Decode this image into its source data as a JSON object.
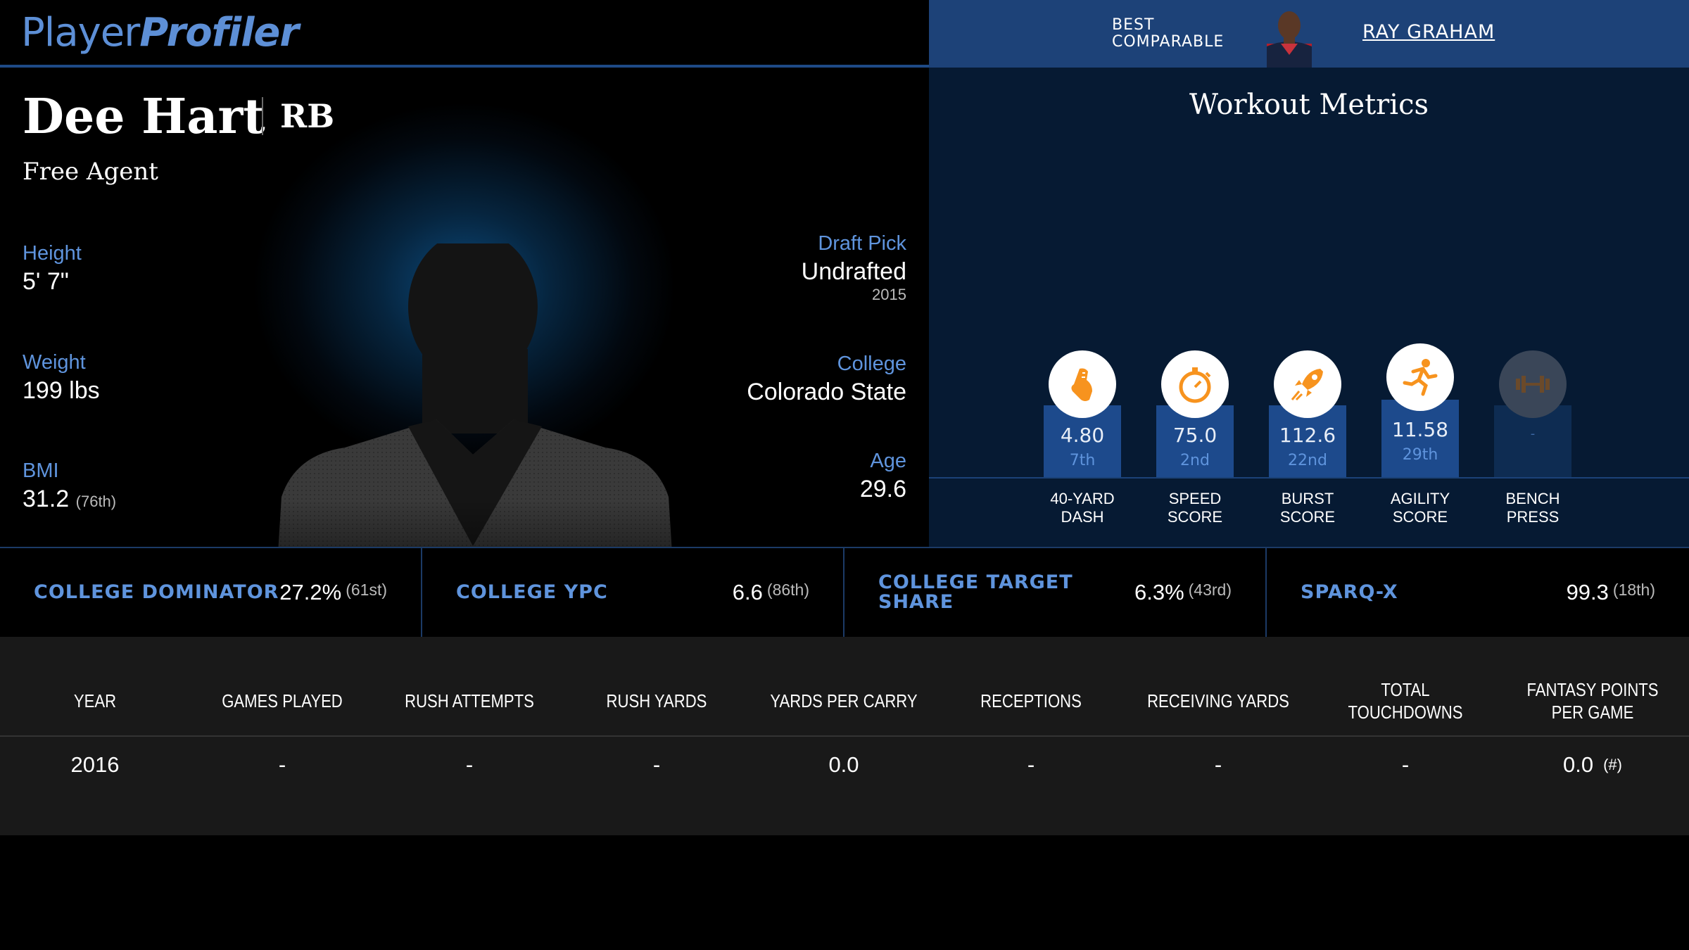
{
  "header": {
    "logo_part1": "Player",
    "logo_part2": "Profiler"
  },
  "comparable": {
    "label_line1": "BEST",
    "label_line2": "COMPARABLE",
    "name": "RAY GRAHAM"
  },
  "player": {
    "name": "Dee Hart",
    "position": "RB",
    "team": "Free Agent",
    "height_label": "Height",
    "height": "5' 7\"",
    "weight_label": "Weight",
    "weight": "199 lbs",
    "bmi_label": "BMI",
    "bmi": "31.2",
    "bmi_rank": "(76th)",
    "draft_label": "Draft Pick",
    "draft": "Undrafted",
    "draft_year": "2015",
    "college_label": "College",
    "college": "Colorado State",
    "age_label": "Age",
    "age": "29.6"
  },
  "workout": {
    "title": "Workout Metrics",
    "metrics": [
      {
        "value": "4.80",
        "rank": "7th",
        "label1": "40-YARD",
        "label2": "DASH",
        "icon": "shoe-icon",
        "level": 0.55
      },
      {
        "value": "75.0",
        "rank": "2nd",
        "label1": "SPEED",
        "label2": "SCORE",
        "icon": "stopwatch-icon",
        "level": 0.55
      },
      {
        "value": "112.6",
        "rank": "22nd",
        "label1": "BURST",
        "label2": "SCORE",
        "icon": "rocket-icon",
        "level": 0.55
      },
      {
        "value": "11.58",
        "rank": "29th",
        "label1": "AGILITY",
        "label2": "SCORE",
        "icon": "runner-icon",
        "level": 0.6
      },
      {
        "value": "-",
        "rank": "",
        "label1": "BENCH",
        "label2": "PRESS",
        "icon": "barbell-icon",
        "level": 0.55
      }
    ]
  },
  "college_metrics": [
    {
      "label": "COLLEGE DOMINATOR",
      "value": "27.2%",
      "rank": "(61st)"
    },
    {
      "label": "COLLEGE YPC",
      "value": "6.6",
      "rank": "(86th)"
    },
    {
      "label_line1": "COLLEGE TARGET",
      "label_line2": "SHARE",
      "value": "6.3%",
      "rank": "(43rd)"
    },
    {
      "label": "SPARQ-X",
      "value": "99.3",
      "rank": "(18th)"
    }
  ],
  "stats_table": {
    "headers": [
      "YEAR",
      "GAMES PLAYED",
      "RUSH ATTEMPTS",
      "RUSH YARDS",
      "YARDS PER CARRY",
      "RECEPTIONS",
      "RECEIVING YARDS",
      "TOTAL TOUCHDOWNS",
      "FANTASY POINTS PER GAME"
    ],
    "rows": [
      [
        "2016",
        "-",
        "-",
        "-",
        "0.0",
        "-",
        "-",
        "-",
        "0.0"
      ]
    ],
    "row_note": "(#)"
  },
  "colors": {
    "accent_blue": "#5f94dd",
    "bar_blue": "#1d4a8c",
    "icon_orange": "#f7931e",
    "header_blue": "#1d4278"
  }
}
